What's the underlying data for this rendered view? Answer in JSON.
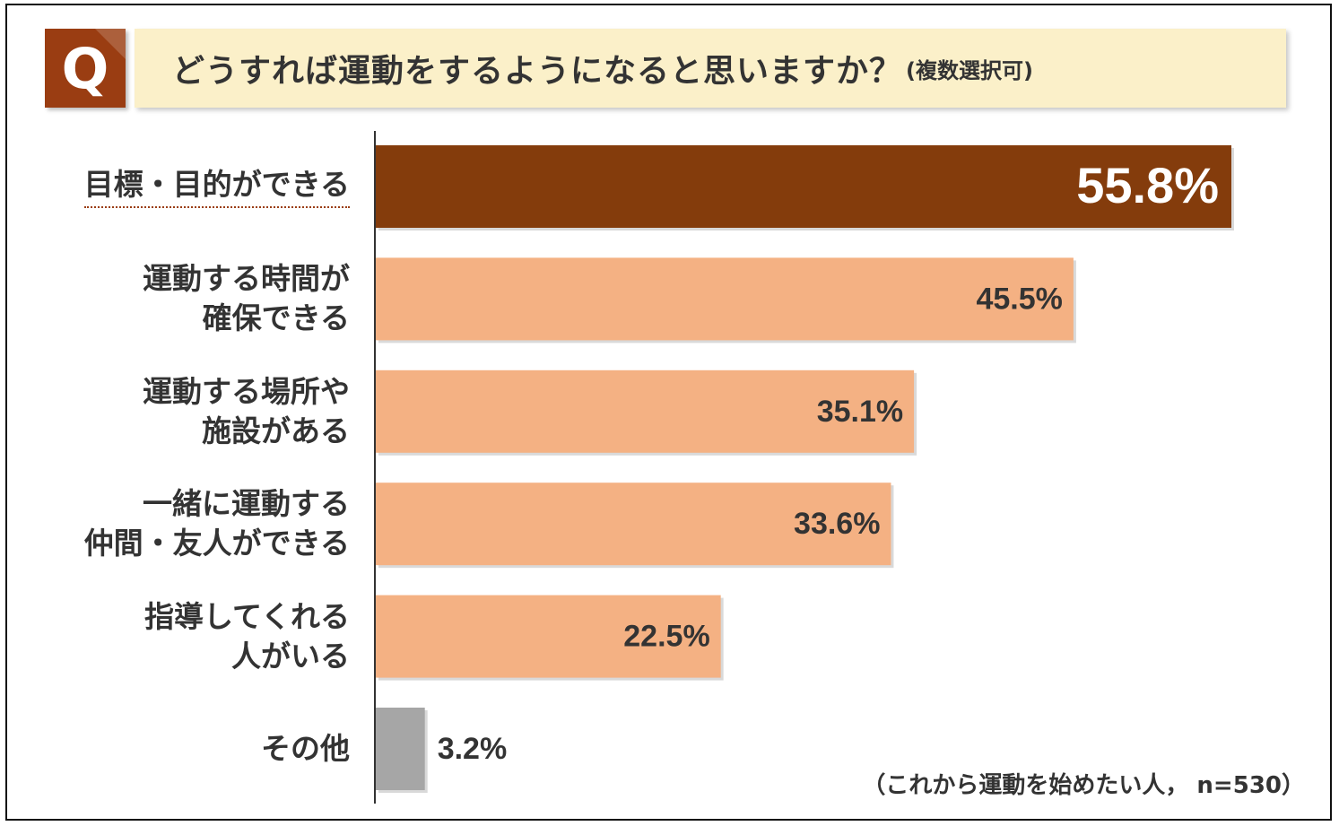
{
  "badge": {
    "letter": "Q"
  },
  "header": {
    "question": "どうすれば運動をするようになると思いますか？",
    "note": "(複数選択可)"
  },
  "footnote": "（これから運動を始めたい人， n=530）",
  "colors": {
    "highlight_bar": "#843c0c",
    "normal_bar": "#f4b183",
    "other_bar": "#a6a6a6",
    "badge": "#9a3d12",
    "title_bg": "#fbf0c9"
  },
  "chart_data": {
    "type": "bar",
    "orientation": "horizontal",
    "title": "どうすれば運動をするようになると思いますか？(複数選択可)",
    "categories": [
      [
        "目標・目的ができる"
      ],
      [
        "運動する時間が",
        "確保できる"
      ],
      [
        "運動する場所や",
        "施設がある"
      ],
      [
        "一緒に運動する",
        "仲間・友人ができる"
      ],
      [
        "指導してくれる",
        "人がいる"
      ],
      [
        "その他"
      ]
    ],
    "values": [
      55.8,
      45.5,
      35.1,
      33.6,
      22.5,
      3.2
    ],
    "value_labels": [
      "55.8%",
      "45.5%",
      "35.1%",
      "33.6%",
      "22.5%",
      "3.2%"
    ],
    "unit": "%",
    "xlim": [
      0,
      60
    ],
    "grid": false,
    "legend": "none",
    "xlabel": "",
    "ylabel": ""
  }
}
